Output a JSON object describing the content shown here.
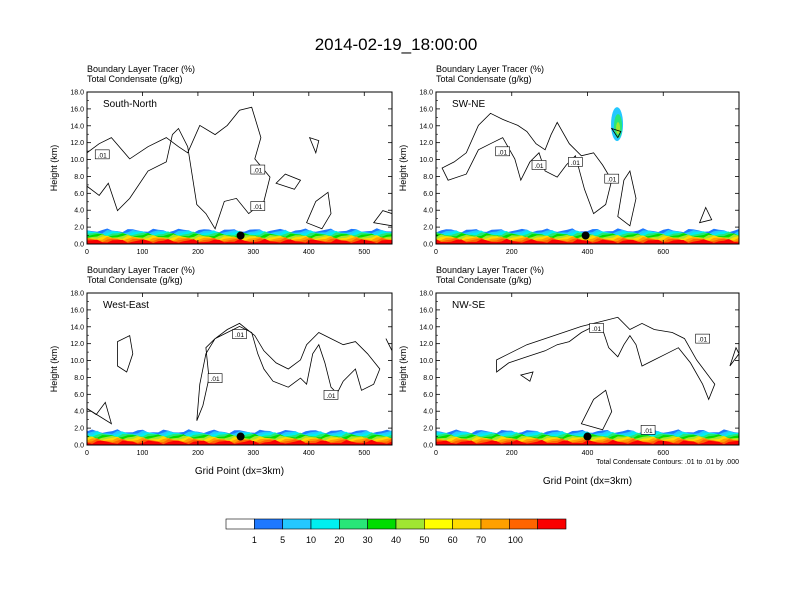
{
  "figure": {
    "title": "2014-02-19_18:00:00",
    "note": "Total Condensate Contours: .01 to .01 by .000",
    "colorbar": {
      "labels": [
        "1",
        "5",
        "10",
        "20",
        "30",
        "40",
        "50",
        "60",
        "70",
        "100"
      ],
      "colors": [
        "#ffffff",
        "#1e78ff",
        "#24c8ff",
        "#00f0f0",
        "#28e678",
        "#00dc00",
        "#a0e632",
        "#ffff00",
        "#ffdc00",
        "#ffa000",
        "#ff6400",
        "#fa0000"
      ]
    }
  },
  "chart_data": [
    {
      "type": "heatmap",
      "name": "South-North",
      "title_line1": "Boundary Layer Tracer   (%)",
      "title_line2": "Total Condensate   (g/kg)",
      "panel_label": "South-North",
      "ylabel": "Height (km)",
      "xlabel": "",
      "ylim": [
        0,
        18
      ],
      "xlim": [
        0,
        550
      ],
      "yticks": [
        "0.0",
        "2.0",
        "4.0",
        "6.0",
        "8.0",
        "10.0",
        "12.0",
        "14.0",
        "16.0",
        "18.0"
      ],
      "xticks": [
        {
          "v": 0,
          "label": "0"
        },
        {
          "v": 100,
          "label": "100"
        },
        {
          "v": 200,
          "label": "200"
        },
        {
          "v": 300,
          "label": "300"
        },
        {
          "v": 400,
          "label": "400"
        },
        {
          "v": 500,
          "label": "500"
        }
      ],
      "contour_labels": [
        ".01",
        ".01",
        ".01"
      ],
      "marker": {
        "x": 277,
        "y": 1.0
      }
    },
    {
      "type": "heatmap",
      "name": "SW-NE",
      "title_line1": "Boundary Layer Tracer   (%)",
      "title_line2": "Total Condensate   (g/kg)",
      "panel_label": "SW-NE",
      "ylabel": "Height (km)",
      "xlabel": "",
      "ylim": [
        0,
        18
      ],
      "xlim": [
        0,
        800
      ],
      "yticks": [
        "0.0",
        "2.0",
        "4.0",
        "6.0",
        "8.0",
        "10.0",
        "12.0",
        "14.0",
        "16.0",
        "18.0"
      ],
      "xticks": [
        {
          "v": 0,
          "label": "0"
        },
        {
          "v": 200,
          "label": "200"
        },
        {
          "v": 400,
          "label": "400"
        },
        {
          "v": 600,
          "label": "600"
        }
      ],
      "contour_labels": [
        ".01",
        ".01",
        ".01",
        ".01"
      ],
      "marker": {
        "x": 395,
        "y": 1.0
      }
    },
    {
      "type": "heatmap",
      "name": "West-East",
      "title_line1": "Boundary Layer Tracer   (%)",
      "title_line2": "Total Condensate   (g/kg)",
      "panel_label": "West-East",
      "ylabel": "Height (km)",
      "xlabel": "Grid Point (dx=3km)",
      "ylim": [
        0,
        18
      ],
      "xlim": [
        0,
        550
      ],
      "yticks": [
        "0.0",
        "2.0",
        "4.0",
        "6.0",
        "8.0",
        "10.0",
        "12.0",
        "14.0",
        "16.0",
        "18.0"
      ],
      "xticks": [
        {
          "v": 0,
          "label": "0"
        },
        {
          "v": 100,
          "label": "100"
        },
        {
          "v": 200,
          "label": "200"
        },
        {
          "v": 300,
          "label": "300"
        },
        {
          "v": 400,
          "label": "400"
        },
        {
          "v": 500,
          "label": "500"
        }
      ],
      "contour_labels": [
        ".01",
        ".01",
        ".01"
      ],
      "marker": {
        "x": 277,
        "y": 1.0
      }
    },
    {
      "type": "heatmap",
      "name": "NW-SE",
      "title_line1": "Boundary Layer Tracer   (%)",
      "title_line2": "Total Condensate   (g/kg)",
      "panel_label": "NW-SE",
      "ylabel": "Height (km)",
      "xlabel": "Grid Point (dx=3km)",
      "ylim": [
        0,
        18
      ],
      "xlim": [
        0,
        800
      ],
      "yticks": [
        "0.0",
        "2.0",
        "4.0",
        "6.0",
        "8.0",
        "10.0",
        "12.0",
        "14.0",
        "16.0",
        "18.0"
      ],
      "xticks": [
        {
          "v": 0,
          "label": "0"
        },
        {
          "v": 200,
          "label": "200"
        },
        {
          "v": 400,
          "label": "400"
        },
        {
          "v": 600,
          "label": "600"
        }
      ],
      "contour_labels": [
        ".01",
        ".01",
        ".01"
      ],
      "marker": {
        "x": 400,
        "y": 1.0
      }
    }
  ]
}
